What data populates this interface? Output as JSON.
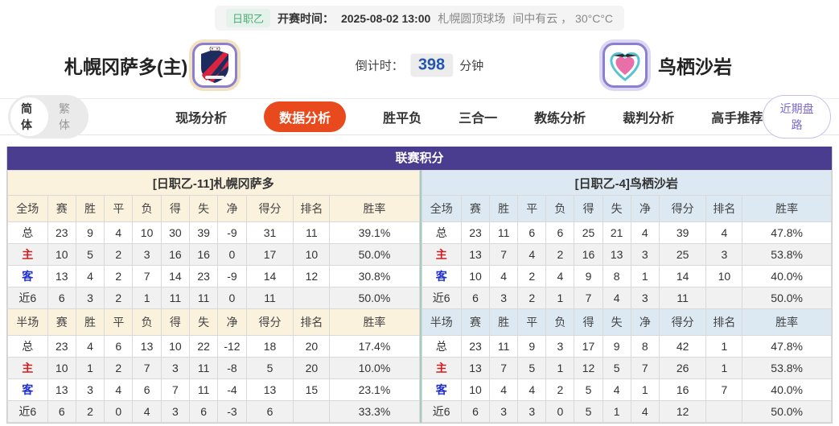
{
  "topbar": {
    "league_tag": "日职乙",
    "kickoff_label": "开赛时间：",
    "kickoff_time": "2025-08-02 13:00",
    "venue": "札幌圆顶球场",
    "weather": "间中有云 ， 30°C°C"
  },
  "match": {
    "home_name": "札幌冈萨多(主)",
    "away_name": "鸟栖沙岩",
    "countdown_label": "倒计时：",
    "countdown_value": "398",
    "countdown_unit": "分钟"
  },
  "lang_toggle": {
    "simplified": "简体",
    "traditional": "繁体"
  },
  "tabs": [
    {
      "id": "live-analysis",
      "label": "现场分析",
      "active": false
    },
    {
      "id": "data-analysis",
      "label": "数据分析",
      "active": true
    },
    {
      "id": "win-draw-loss",
      "label": "胜平负",
      "active": false
    },
    {
      "id": "three-in-one",
      "label": "三合一",
      "active": false
    },
    {
      "id": "coach-analysis",
      "label": "教练分析",
      "active": false
    },
    {
      "id": "referee-analysis",
      "label": "裁判分析",
      "active": false
    },
    {
      "id": "expert-picks",
      "label": "高手推荐",
      "active": false
    }
  ],
  "recent_button": "近期盘路",
  "colors": {
    "accent_purple": "#4a3d90",
    "tab_active_orange": "#e8491d",
    "home_section_bg": "#fbf2dd",
    "away_section_bg": "#dce9f2",
    "row_alt_bg": "#f1f1f1",
    "home_row_red": "#cf1f1f",
    "away_row_blue": "#1f2fcf",
    "league_tag_green": "#4fa878",
    "countdown_blue": "#2456b0"
  },
  "table": {
    "title": "联赛积分",
    "columns_full": [
      "全场",
      "赛",
      "胜",
      "平",
      "负",
      "得",
      "失",
      "净",
      "得分",
      "排名",
      "胜率"
    ],
    "columns_half": [
      "半场",
      "赛",
      "胜",
      "平",
      "负",
      "得",
      "失",
      "净",
      "得分",
      "排名",
      "胜率"
    ],
    "home": {
      "header": "[日职乙-11]札幌冈萨多",
      "full": [
        {
          "label": "总",
          "type": "total",
          "cells": [
            "23",
            "9",
            "4",
            "10",
            "30",
            "39",
            "-9",
            "31",
            "11",
            "39.1%"
          ]
        },
        {
          "label": "主",
          "type": "home-row",
          "cells": [
            "10",
            "5",
            "2",
            "3",
            "16",
            "16",
            "0",
            "17",
            "10",
            "50.0%"
          ]
        },
        {
          "label": "客",
          "type": "away-row",
          "cells": [
            "13",
            "4",
            "2",
            "7",
            "14",
            "23",
            "-9",
            "14",
            "12",
            "30.8%"
          ]
        },
        {
          "label": "近6",
          "type": "recent6",
          "cells": [
            "6",
            "3",
            "2",
            "1",
            "11",
            "11",
            "0",
            "11",
            "",
            "50.0%"
          ]
        }
      ],
      "half": [
        {
          "label": "总",
          "type": "total",
          "cells": [
            "23",
            "4",
            "6",
            "13",
            "10",
            "22",
            "-12",
            "18",
            "20",
            "17.4%"
          ]
        },
        {
          "label": "主",
          "type": "home-row",
          "cells": [
            "10",
            "1",
            "2",
            "7",
            "3",
            "11",
            "-8",
            "5",
            "20",
            "10.0%"
          ]
        },
        {
          "label": "客",
          "type": "away-row",
          "cells": [
            "13",
            "3",
            "4",
            "6",
            "7",
            "11",
            "-4",
            "13",
            "15",
            "23.1%"
          ]
        },
        {
          "label": "近6",
          "type": "recent6",
          "cells": [
            "6",
            "2",
            "0",
            "4",
            "3",
            "6",
            "-3",
            "6",
            "",
            "33.3%"
          ]
        }
      ]
    },
    "away": {
      "header": "[日职乙-4]鸟栖沙岩",
      "full": [
        {
          "label": "总",
          "type": "total",
          "cells": [
            "23",
            "11",
            "6",
            "6",
            "25",
            "21",
            "4",
            "39",
            "4",
            "47.8%"
          ]
        },
        {
          "label": "主",
          "type": "home-row",
          "cells": [
            "13",
            "7",
            "4",
            "2",
            "16",
            "13",
            "3",
            "25",
            "3",
            "53.8%"
          ]
        },
        {
          "label": "客",
          "type": "away-row",
          "cells": [
            "10",
            "4",
            "2",
            "4",
            "9",
            "8",
            "1",
            "14",
            "10",
            "40.0%"
          ]
        },
        {
          "label": "近6",
          "type": "recent6",
          "cells": [
            "6",
            "3",
            "2",
            "1",
            "7",
            "4",
            "3",
            "11",
            "",
            "50.0%"
          ]
        }
      ],
      "half": [
        {
          "label": "总",
          "type": "total",
          "cells": [
            "23",
            "11",
            "9",
            "3",
            "17",
            "9",
            "8",
            "42",
            "1",
            "47.8%"
          ]
        },
        {
          "label": "主",
          "type": "home-row",
          "cells": [
            "13",
            "7",
            "5",
            "1",
            "12",
            "5",
            "7",
            "26",
            "1",
            "53.8%"
          ]
        },
        {
          "label": "客",
          "type": "away-row",
          "cells": [
            "10",
            "4",
            "4",
            "2",
            "5",
            "4",
            "1",
            "16",
            "7",
            "40.0%"
          ]
        },
        {
          "label": "近6",
          "type": "recent6",
          "cells": [
            "6",
            "3",
            "3",
            "0",
            "5",
            "1",
            "4",
            "12",
            "",
            "50.0%"
          ]
        }
      ]
    }
  }
}
